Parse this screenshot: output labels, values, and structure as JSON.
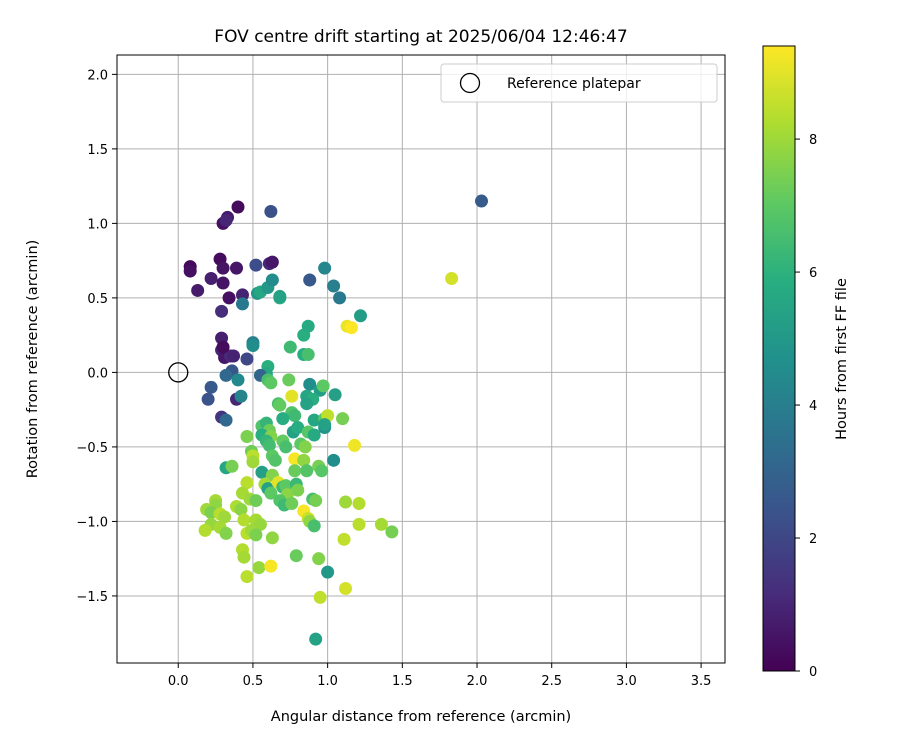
{
  "chart_data": {
    "type": "scatter",
    "title": "FOV centre drift starting at 2025/06/04 12:46:47",
    "xlabel": "Angular distance from reference (arcmin)",
    "ylabel": "Rotation from reference (arcmin)",
    "xlim": [
      -0.41,
      3.66
    ],
    "ylim": [
      -1.95,
      2.13
    ],
    "xticks": [
      0.0,
      0.5,
      1.0,
      1.5,
      2.0,
      2.5,
      3.0,
      3.5
    ],
    "xtick_labels": [
      "0.0",
      "0.5",
      "1.0",
      "1.5",
      "2.0",
      "2.5",
      "3.0",
      "3.5"
    ],
    "yticks": [
      -1.5,
      -1.0,
      -0.5,
      0.0,
      0.5,
      1.0,
      1.5,
      2.0
    ],
    "ytick_labels": [
      "−1.5",
      "−1.0",
      "−0.5",
      "0.0",
      "0.5",
      "1.0",
      "1.5",
      "2.0"
    ],
    "grid": true,
    "legend": {
      "placement": "upper-right",
      "entries": [
        "Reference platepar"
      ]
    },
    "reference_point": {
      "x": 0.0,
      "y": 0.0,
      "marker": "open-circle"
    },
    "colorbar": {
      "label": "Hours from first FF file",
      "colormap": "viridis",
      "range": [
        0,
        9.4
      ],
      "ticks": [
        0,
        2,
        4,
        6,
        8
      ],
      "tick_labels": [
        "0",
        "2",
        "4",
        "6",
        "8"
      ]
    },
    "points": [
      {
        "x": 0.4,
        "y": 1.11,
        "t": 0.3
      },
      {
        "x": 0.33,
        "y": 1.04,
        "t": 0.7
      },
      {
        "x": 0.3,
        "y": 1.0,
        "t": 0.4
      },
      {
        "x": 0.32,
        "y": 1.02,
        "t": 1.0
      },
      {
        "x": 0.08,
        "y": 0.71,
        "t": 0.2
      },
      {
        "x": 0.08,
        "y": 0.68,
        "t": 0.4
      },
      {
        "x": 0.28,
        "y": 0.76,
        "t": 0.3
      },
      {
        "x": 0.3,
        "y": 0.7,
        "t": 0.5
      },
      {
        "x": 0.39,
        "y": 0.7,
        "t": 0.6
      },
      {
        "x": 0.22,
        "y": 0.63,
        "t": 0.8
      },
      {
        "x": 0.3,
        "y": 0.6,
        "t": 0.5
      },
      {
        "x": 0.13,
        "y": 0.55,
        "t": 0.7
      },
      {
        "x": 0.34,
        "y": 0.5,
        "t": 0.4
      },
      {
        "x": 0.43,
        "y": 0.52,
        "t": 0.9
      },
      {
        "x": 0.29,
        "y": 0.41,
        "t": 1.2
      },
      {
        "x": 0.61,
        "y": 0.73,
        "t": 1.0
      },
      {
        "x": 0.63,
        "y": 0.74,
        "t": 0.6
      },
      {
        "x": 0.52,
        "y": 0.72,
        "t": 2.2
      },
      {
        "x": 0.62,
        "y": 1.08,
        "t": 2.3
      },
      {
        "x": 0.29,
        "y": 0.23,
        "t": 0.8
      },
      {
        "x": 0.29,
        "y": 0.15,
        "t": 1.0
      },
      {
        "x": 0.31,
        "y": 0.1,
        "t": 0.6
      },
      {
        "x": 0.35,
        "y": 0.11,
        "t": 1.1
      },
      {
        "x": 0.37,
        "y": 0.11,
        "t": 0.9
      },
      {
        "x": 0.3,
        "y": 0.17,
        "t": 0.3
      },
      {
        "x": 0.46,
        "y": 0.09,
        "t": 2.0
      },
      {
        "x": 0.36,
        "y": 0.01,
        "t": 2.5
      },
      {
        "x": 0.32,
        "y": -0.02,
        "t": 3.2
      },
      {
        "x": 0.22,
        "y": -0.1,
        "t": 2.6
      },
      {
        "x": 0.2,
        "y": -0.18,
        "t": 2.4
      },
      {
        "x": 0.39,
        "y": -0.18,
        "t": 1.0
      },
      {
        "x": 0.42,
        "y": -0.16,
        "t": 4.2
      },
      {
        "x": 0.29,
        "y": -0.3,
        "t": 1.4
      },
      {
        "x": 0.32,
        "y": -0.32,
        "t": 3.2
      },
      {
        "x": 0.4,
        "y": -0.05,
        "t": 4.4
      },
      {
        "x": 0.43,
        "y": 0.46,
        "t": 3.8
      },
      {
        "x": 0.5,
        "y": 0.2,
        "t": 4.0
      },
      {
        "x": 0.5,
        "y": 0.18,
        "t": 4.6
      },
      {
        "x": 0.53,
        "y": 0.53,
        "t": 4.9
      },
      {
        "x": 0.55,
        "y": 0.54,
        "t": 5.6
      },
      {
        "x": 0.6,
        "y": 0.57,
        "t": 5.0
      },
      {
        "x": 0.63,
        "y": 0.62,
        "t": 4.5
      },
      {
        "x": 0.68,
        "y": 0.5,
        "t": 5.8
      },
      {
        "x": 0.68,
        "y": 0.51,
        "t": 5.4
      },
      {
        "x": 0.88,
        "y": 0.62,
        "t": 2.6
      },
      {
        "x": 0.98,
        "y": 0.7,
        "t": 4.3
      },
      {
        "x": 1.04,
        "y": 0.58,
        "t": 4.0
      },
      {
        "x": 1.08,
        "y": 0.5,
        "t": 3.8
      },
      {
        "x": 1.22,
        "y": 0.38,
        "t": 5.2
      },
      {
        "x": 2.03,
        "y": 1.15,
        "t": 2.7
      },
      {
        "x": 1.83,
        "y": 0.63,
        "t": 8.8
      },
      {
        "x": 1.13,
        "y": 0.31,
        "t": 9.1
      },
      {
        "x": 1.16,
        "y": 0.3,
        "t": 9.4
      },
      {
        "x": 0.84,
        "y": 0.25,
        "t": 5.9
      },
      {
        "x": 0.87,
        "y": 0.31,
        "t": 5.7
      },
      {
        "x": 0.75,
        "y": 0.17,
        "t": 6.4
      },
      {
        "x": 0.84,
        "y": 0.12,
        "t": 5.8
      },
      {
        "x": 0.87,
        "y": 0.12,
        "t": 6.6
      },
      {
        "x": 0.6,
        "y": 0.04,
        "t": 5.9
      },
      {
        "x": 0.59,
        "y": -0.01,
        "t": 5.6
      },
      {
        "x": 0.55,
        "y": -0.02,
        "t": 3.0
      },
      {
        "x": 0.6,
        "y": -0.05,
        "t": 6.6
      },
      {
        "x": 0.62,
        "y": -0.07,
        "t": 7.0
      },
      {
        "x": 0.74,
        "y": -0.05,
        "t": 7.2
      },
      {
        "x": 0.88,
        "y": -0.08,
        "t": 4.6
      },
      {
        "x": 0.95,
        "y": -0.12,
        "t": 5.2
      },
      {
        "x": 0.97,
        "y": -0.09,
        "t": 7.0
      },
      {
        "x": 0.86,
        "y": -0.16,
        "t": 5.5
      },
      {
        "x": 0.9,
        "y": -0.18,
        "t": 5.9
      },
      {
        "x": 0.86,
        "y": -0.21,
        "t": 5.4
      },
      {
        "x": 1.05,
        "y": -0.15,
        "t": 5.3
      },
      {
        "x": 0.76,
        "y": -0.16,
        "t": 9.0
      },
      {
        "x": 0.67,
        "y": -0.21,
        "t": 6.6
      },
      {
        "x": 0.68,
        "y": -0.22,
        "t": 7.1
      },
      {
        "x": 0.76,
        "y": -0.27,
        "t": 6.8
      },
      {
        "x": 0.78,
        "y": -0.29,
        "t": 6.4
      },
      {
        "x": 0.7,
        "y": -0.31,
        "t": 5.8
      },
      {
        "x": 0.91,
        "y": -0.32,
        "t": 5.6
      },
      {
        "x": 0.98,
        "y": -0.31,
        "t": 6.9
      },
      {
        "x": 1.0,
        "y": -0.29,
        "t": 8.5
      },
      {
        "x": 1.1,
        "y": -0.31,
        "t": 7.4
      },
      {
        "x": 0.56,
        "y": -0.36,
        "t": 6.8
      },
      {
        "x": 0.59,
        "y": -0.34,
        "t": 6.2
      },
      {
        "x": 0.61,
        "y": -0.39,
        "t": 7.3
      },
      {
        "x": 0.56,
        "y": -0.42,
        "t": 5.9
      },
      {
        "x": 0.62,
        "y": -0.43,
        "t": 7.6
      },
      {
        "x": 0.46,
        "y": -0.43,
        "t": 7.5
      },
      {
        "x": 0.77,
        "y": -0.4,
        "t": 5.4
      },
      {
        "x": 0.8,
        "y": -0.37,
        "t": 5.8
      },
      {
        "x": 0.87,
        "y": -0.4,
        "t": 6.9
      },
      {
        "x": 0.91,
        "y": -0.42,
        "t": 5.7
      },
      {
        "x": 0.98,
        "y": -0.37,
        "t": 4.8
      },
      {
        "x": 0.98,
        "y": -0.35,
        "t": 5.4
      },
      {
        "x": 0.59,
        "y": -0.46,
        "t": 6.2
      },
      {
        "x": 0.61,
        "y": -0.49,
        "t": 6.5
      },
      {
        "x": 0.7,
        "y": -0.46,
        "t": 7.1
      },
      {
        "x": 0.72,
        "y": -0.5,
        "t": 6.6
      },
      {
        "x": 0.82,
        "y": -0.48,
        "t": 7.0
      },
      {
        "x": 0.85,
        "y": -0.5,
        "t": 7.6
      },
      {
        "x": 1.18,
        "y": -0.49,
        "t": 9.2
      },
      {
        "x": 0.49,
        "y": -0.53,
        "t": 7.3
      },
      {
        "x": 0.5,
        "y": -0.56,
        "t": 8.4
      },
      {
        "x": 0.5,
        "y": -0.6,
        "t": 8.0
      },
      {
        "x": 0.63,
        "y": -0.56,
        "t": 7.0
      },
      {
        "x": 0.65,
        "y": -0.59,
        "t": 6.8
      },
      {
        "x": 0.78,
        "y": -0.58,
        "t": 9.3
      },
      {
        "x": 0.84,
        "y": -0.59,
        "t": 7.8
      },
      {
        "x": 1.04,
        "y": -0.59,
        "t": 4.6
      },
      {
        "x": 0.32,
        "y": -0.64,
        "t": 5.6
      },
      {
        "x": 0.36,
        "y": -0.63,
        "t": 7.4
      },
      {
        "x": 0.56,
        "y": -0.67,
        "t": 5.3
      },
      {
        "x": 0.63,
        "y": -0.69,
        "t": 7.6
      },
      {
        "x": 0.78,
        "y": -0.66,
        "t": 7.2
      },
      {
        "x": 0.86,
        "y": -0.66,
        "t": 6.8
      },
      {
        "x": 0.94,
        "y": -0.63,
        "t": 7.4
      },
      {
        "x": 0.96,
        "y": -0.66,
        "t": 6.9
      },
      {
        "x": 0.58,
        "y": -0.75,
        "t": 8.1
      },
      {
        "x": 0.6,
        "y": -0.78,
        "t": 5.4
      },
      {
        "x": 0.67,
        "y": -0.74,
        "t": 9.0
      },
      {
        "x": 0.7,
        "y": -0.77,
        "t": 6.3
      },
      {
        "x": 0.72,
        "y": -0.76,
        "t": 7.0
      },
      {
        "x": 0.79,
        "y": -0.75,
        "t": 6.3
      },
      {
        "x": 0.46,
        "y": -0.74,
        "t": 8.4
      },
      {
        "x": 0.43,
        "y": -0.81,
        "t": 8.1
      },
      {
        "x": 0.62,
        "y": -0.81,
        "t": 7.0
      },
      {
        "x": 0.73,
        "y": -0.82,
        "t": 7.7
      },
      {
        "x": 0.8,
        "y": -0.79,
        "t": 7.5
      },
      {
        "x": 0.48,
        "y": -0.85,
        "t": 8.0
      },
      {
        "x": 0.52,
        "y": -0.86,
        "t": 7.3
      },
      {
        "x": 0.68,
        "y": -0.86,
        "t": 6.8
      },
      {
        "x": 0.71,
        "y": -0.89,
        "t": 6.4
      },
      {
        "x": 0.76,
        "y": -0.88,
        "t": 7.3
      },
      {
        "x": 0.9,
        "y": -0.85,
        "t": 6.6
      },
      {
        "x": 0.92,
        "y": -0.86,
        "t": 7.4
      },
      {
        "x": 1.12,
        "y": -0.87,
        "t": 8.0
      },
      {
        "x": 1.21,
        "y": -0.88,
        "t": 8.3
      },
      {
        "x": 0.25,
        "y": -0.86,
        "t": 8.1
      },
      {
        "x": 0.25,
        "y": -0.89,
        "t": 7.8
      },
      {
        "x": 0.19,
        "y": -0.92,
        "t": 8.0
      },
      {
        "x": 0.22,
        "y": -0.94,
        "t": 7.5
      },
      {
        "x": 0.39,
        "y": -0.9,
        "t": 8.2
      },
      {
        "x": 0.42,
        "y": -0.92,
        "t": 7.7
      },
      {
        "x": 0.28,
        "y": -0.95,
        "t": 8.4
      },
      {
        "x": 0.31,
        "y": -0.97,
        "t": 8.0
      },
      {
        "x": 0.44,
        "y": -0.99,
        "t": 8.3
      },
      {
        "x": 0.52,
        "y": -0.99,
        "t": 8.1
      },
      {
        "x": 0.55,
        "y": -1.02,
        "t": 7.9
      },
      {
        "x": 0.84,
        "y": -0.93,
        "t": 9.3
      },
      {
        "x": 0.87,
        "y": -0.98,
        "t": 8.6
      },
      {
        "x": 0.88,
        "y": -1.0,
        "t": 7.8
      },
      {
        "x": 0.91,
        "y": -1.03,
        "t": 6.6
      },
      {
        "x": 1.21,
        "y": -1.02,
        "t": 8.4
      },
      {
        "x": 1.36,
        "y": -1.02,
        "t": 8.1
      },
      {
        "x": 1.43,
        "y": -1.07,
        "t": 7.4
      },
      {
        "x": 0.22,
        "y": -1.02,
        "t": 7.9
      },
      {
        "x": 0.18,
        "y": -1.06,
        "t": 8.3
      },
      {
        "x": 0.28,
        "y": -1.04,
        "t": 8.1
      },
      {
        "x": 0.32,
        "y": -1.08,
        "t": 7.6
      },
      {
        "x": 0.46,
        "y": -1.08,
        "t": 8.4
      },
      {
        "x": 0.49,
        "y": -1.06,
        "t": 8.0
      },
      {
        "x": 0.52,
        "y": -1.09,
        "t": 7.5
      },
      {
        "x": 0.63,
        "y": -1.11,
        "t": 7.8
      },
      {
        "x": 1.11,
        "y": -1.12,
        "t": 8.5
      },
      {
        "x": 0.43,
        "y": -1.19,
        "t": 8.3
      },
      {
        "x": 0.44,
        "y": -1.24,
        "t": 8.1
      },
      {
        "x": 0.79,
        "y": -1.23,
        "t": 7.2
      },
      {
        "x": 0.94,
        "y": -1.25,
        "t": 7.6
      },
      {
        "x": 0.54,
        "y": -1.31,
        "t": 7.9
      },
      {
        "x": 0.62,
        "y": -1.3,
        "t": 9.3
      },
      {
        "x": 0.46,
        "y": -1.37,
        "t": 8.4
      },
      {
        "x": 1.0,
        "y": -1.34,
        "t": 5.0
      },
      {
        "x": 1.12,
        "y": -1.45,
        "t": 8.8
      },
      {
        "x": 0.95,
        "y": -1.51,
        "t": 8.5
      },
      {
        "x": 0.92,
        "y": -1.79,
        "t": 5.4
      }
    ]
  }
}
